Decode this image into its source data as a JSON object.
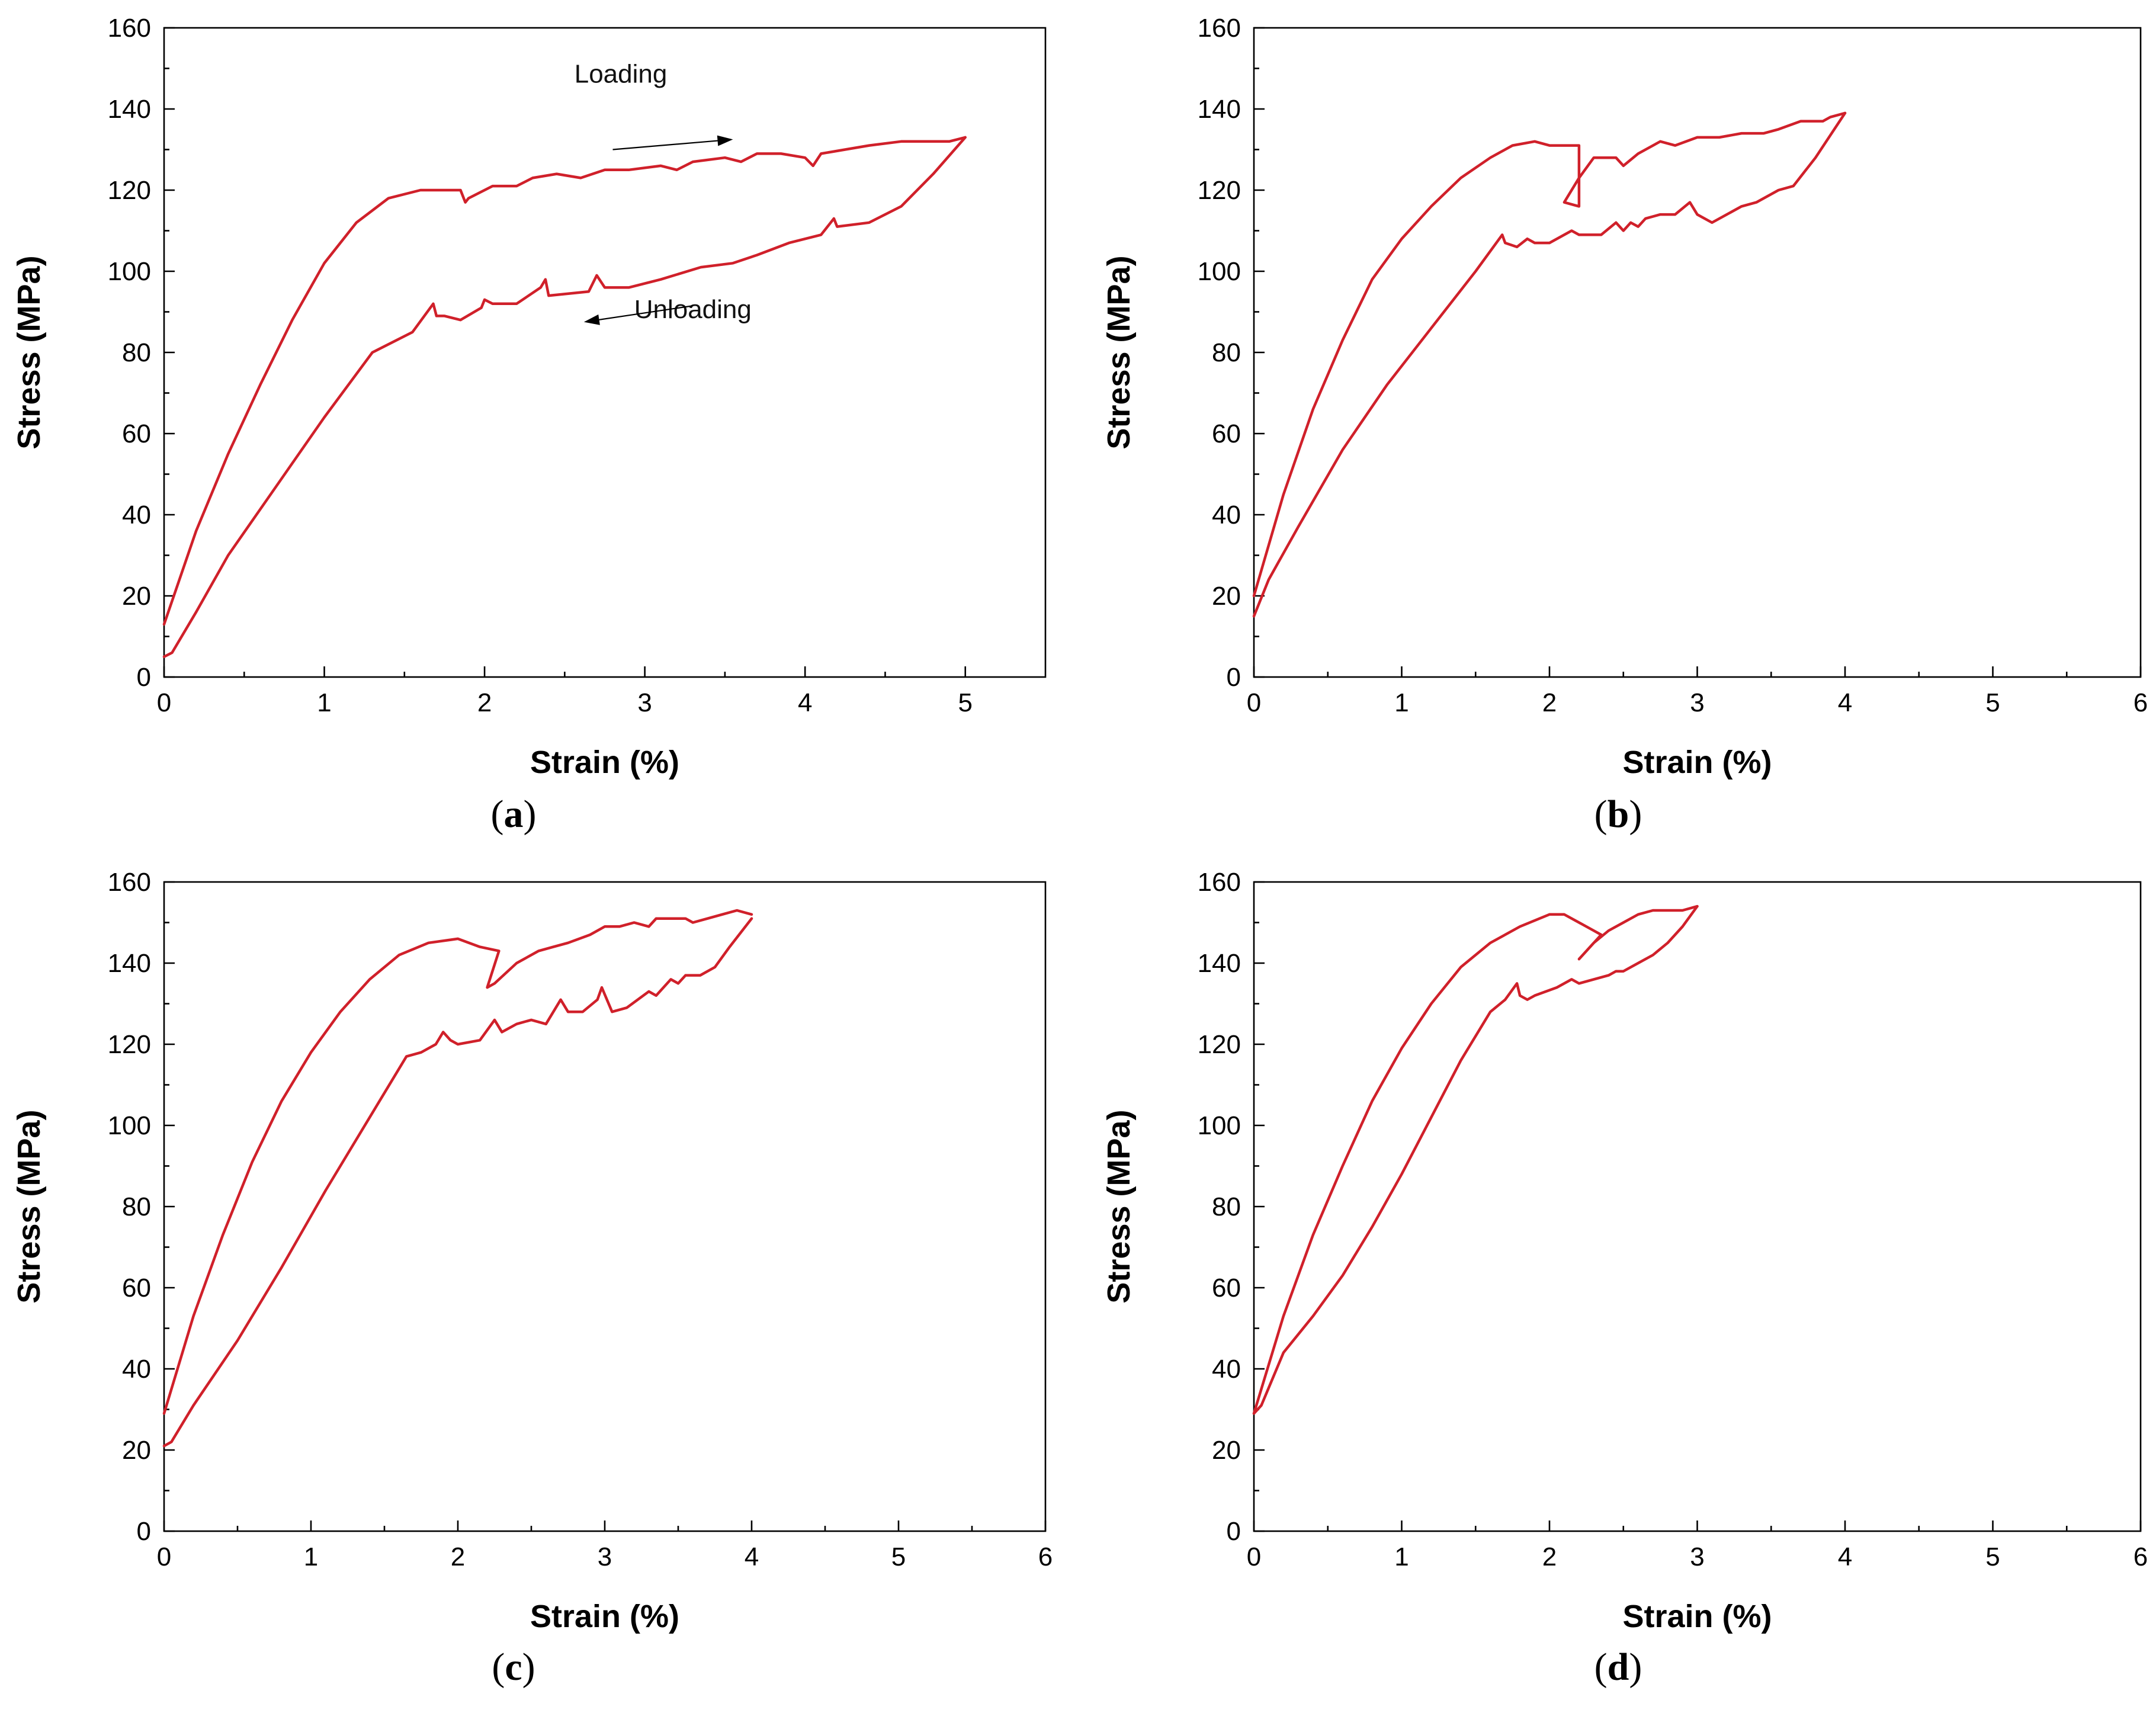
{
  "figure": {
    "line_color": "#d0202a",
    "axis_color": "#000000"
  },
  "chart_data": [
    {
      "panel": "a",
      "type": "line",
      "xlabel": "Strain (%)",
      "ylabel": "Stress (MPa)",
      "xlim": [
        0,
        5.5
      ],
      "ylim": [
        0,
        160
      ],
      "xticks": [
        0,
        1,
        2,
        3,
        4,
        5
      ],
      "yticks": [
        0,
        20,
        40,
        60,
        80,
        100,
        120,
        140,
        160
      ],
      "grid": false,
      "annotations": [
        {
          "text": "Loading",
          "x": 2.85,
          "y": 146.5,
          "arrow_from": [
            2.8,
            130
          ],
          "arrow_to": [
            3.55,
            132.5
          ]
        },
        {
          "text": "Unloading",
          "x": 3.3,
          "y": 88.5,
          "arrow_from": [
            3.3,
            91.5
          ],
          "arrow_to": [
            2.62,
            87.5
          ]
        }
      ],
      "series": [
        {
          "x": [
            0.0,
            0.2,
            0.4,
            0.6,
            0.8,
            1.0,
            1.2,
            1.4,
            1.6,
            1.72,
            1.85,
            1.88,
            1.9,
            2.05,
            2.2,
            2.3,
            2.45,
            2.6,
            2.75,
            2.9,
            3.1,
            3.2,
            3.3,
            3.5,
            3.6,
            3.7,
            3.85,
            4.0,
            4.05,
            4.1,
            4.25,
            4.4,
            4.6,
            4.75,
            4.9,
            5.0
          ],
          "y": [
            13,
            36,
            55,
            72,
            88,
            102,
            112,
            118,
            120,
            120,
            120,
            117,
            118,
            121,
            121,
            123,
            124,
            123,
            125,
            125,
            126,
            125,
            127,
            128,
            127,
            129,
            129,
            128,
            126,
            129,
            130,
            131,
            132,
            132,
            132,
            133
          ]
        },
        {
          "x": [
            5.0,
            4.8,
            4.6,
            4.4,
            4.2,
            4.18,
            4.1,
            3.9,
            3.7,
            3.55,
            3.35,
            3.1,
            2.9,
            2.75,
            2.7,
            2.65,
            2.4,
            2.38,
            2.35,
            2.2,
            2.05,
            2.0,
            1.98,
            1.85,
            1.75,
            1.7,
            1.68,
            1.55,
            1.3,
            1.0,
            0.7,
            0.4,
            0.2,
            0.05,
            0.0
          ],
          "y": [
            133,
            124,
            116,
            112,
            111,
            113,
            109,
            107,
            104,
            102,
            101,
            98,
            96,
            96,
            99,
            95,
            94,
            98,
            96,
            92,
            92,
            93,
            91,
            88,
            89,
            89,
            92,
            85,
            80,
            64,
            47,
            30,
            16,
            6,
            5
          ]
        }
      ]
    },
    {
      "panel": "b",
      "type": "line",
      "xlabel": "Strain (%)",
      "ylabel": "Stress (MPa)",
      "xlim": [
        0,
        6
      ],
      "ylim": [
        0,
        160
      ],
      "xticks": [
        0,
        1,
        2,
        3,
        4,
        5,
        6
      ],
      "yticks": [
        0,
        20,
        40,
        60,
        80,
        100,
        120,
        140,
        160
      ],
      "grid": false,
      "series": [
        {
          "x": [
            0.0,
            0.2,
            0.4,
            0.6,
            0.8,
            1.0,
            1.2,
            1.4,
            1.6,
            1.75,
            1.9,
            2.0,
            2.1,
            2.2,
            2.2,
            2.1,
            2.2,
            2.3,
            2.45,
            2.5,
            2.6,
            2.75,
            2.85,
            3.0,
            3.15,
            3.3,
            3.45,
            3.55,
            3.7,
            3.85,
            3.9,
            4.0
          ],
          "y": [
            20,
            45,
            66,
            83,
            98,
            108,
            116,
            123,
            128,
            131,
            132,
            131,
            131,
            131,
            116,
            117,
            123,
            128,
            128,
            126,
            129,
            132,
            131,
            133,
            133,
            134,
            134,
            135,
            137,
            137,
            138,
            139
          ]
        },
        {
          "x": [
            4.0,
            3.8,
            3.65,
            3.55,
            3.4,
            3.3,
            3.1,
            3.0,
            2.95,
            2.85,
            2.75,
            2.65,
            2.6,
            2.55,
            2.5,
            2.45,
            2.35,
            2.2,
            2.15,
            2.0,
            1.9,
            1.85,
            1.78,
            1.7,
            1.68,
            1.5,
            1.2,
            0.9,
            0.6,
            0.3,
            0.1,
            0.0
          ],
          "y": [
            139,
            128,
            121,
            120,
            117,
            116,
            112,
            114,
            117,
            114,
            114,
            113,
            111,
            112,
            110,
            112,
            109,
            109,
            110,
            107,
            107,
            108,
            106,
            107,
            109,
            100,
            86,
            72,
            56,
            37,
            24,
            15
          ]
        }
      ]
    },
    {
      "panel": "c",
      "type": "line",
      "xlabel": "Strain (%)",
      "ylabel": "Stress (MPa)",
      "xlim": [
        0,
        6
      ],
      "ylim": [
        0,
        160
      ],
      "xticks": [
        0,
        1,
        2,
        3,
        4,
        5,
        6
      ],
      "yticks": [
        0,
        20,
        40,
        60,
        80,
        100,
        120,
        140,
        160
      ],
      "grid": false,
      "series": [
        {
          "x": [
            0.0,
            0.2,
            0.4,
            0.6,
            0.8,
            1.0,
            1.2,
            1.4,
            1.6,
            1.8,
            2.0,
            2.15,
            2.28,
            2.2,
            2.25,
            2.4,
            2.55,
            2.65,
            2.75,
            2.9,
            3.0,
            3.1,
            3.2,
            3.3,
            3.35,
            3.45,
            3.55,
            3.6,
            3.7,
            3.8,
            3.9,
            4.0
          ],
          "y": [
            29,
            53,
            73,
            91,
            106,
            118,
            128,
            136,
            142,
            145,
            146,
            144,
            143,
            134,
            135,
            140,
            143,
            144,
            145,
            147,
            149,
            149,
            150,
            149,
            151,
            151,
            151,
            150,
            151,
            152,
            153,
            152
          ]
        },
        {
          "x": [
            4.0,
            3.85,
            3.75,
            3.65,
            3.55,
            3.5,
            3.45,
            3.35,
            3.3,
            3.15,
            3.05,
            2.98,
            2.95,
            2.85,
            2.75,
            2.7,
            2.6,
            2.5,
            2.4,
            2.3,
            2.25,
            2.15,
            2.0,
            1.95,
            1.9,
            1.85,
            1.75,
            1.65,
            1.4,
            1.1,
            0.8,
            0.5,
            0.2,
            0.05,
            0.0
          ],
          "y": [
            151,
            144,
            139,
            137,
            137,
            135,
            136,
            132,
            133,
            129,
            128,
            134,
            131,
            128,
            128,
            131,
            125,
            126,
            125,
            123,
            126,
            121,
            120,
            121,
            123,
            120,
            118,
            117,
            102,
            84,
            65,
            47,
            31,
            22,
            21
          ]
        }
      ]
    },
    {
      "panel": "d",
      "type": "line",
      "xlabel": "Strain (%)",
      "ylabel": "Stress (MPa)",
      "xlim": [
        0,
        6
      ],
      "ylim": [
        0,
        160
      ],
      "xticks": [
        0,
        1,
        2,
        3,
        4,
        5,
        6
      ],
      "yticks": [
        0,
        20,
        40,
        60,
        80,
        100,
        120,
        140,
        160
      ],
      "grid": false,
      "series": [
        {
          "x": [
            0.0,
            0.2,
            0.4,
            0.6,
            0.8,
            1.0,
            1.2,
            1.4,
            1.6,
            1.8,
            2.0,
            2.1,
            2.2,
            2.3,
            2.35,
            2.2,
            2.3,
            2.4,
            2.5,
            2.6,
            2.7,
            2.8,
            2.9,
            3.0
          ],
          "y": [
            29,
            53,
            73,
            90,
            106,
            119,
            130,
            139,
            145,
            149,
            152,
            152,
            150,
            148,
            147,
            141,
            145,
            148,
            150,
            152,
            153,
            153,
            153,
            154
          ]
        },
        {
          "x": [
            3.0,
            2.9,
            2.8,
            2.7,
            2.6,
            2.5,
            2.45,
            2.4,
            2.3,
            2.2,
            2.15,
            2.05,
            1.9,
            1.85,
            1.8,
            1.78,
            1.7,
            1.6,
            1.4,
            1.2,
            1.0,
            0.8,
            0.6,
            0.4,
            0.2,
            0.05,
            0.0
          ],
          "y": [
            154,
            149,
            145,
            142,
            140,
            138,
            138,
            137,
            136,
            135,
            136,
            134,
            132,
            131,
            132,
            135,
            131,
            128,
            116,
            102,
            88,
            75,
            63,
            53,
            44,
            31,
            29
          ]
        }
      ]
    }
  ],
  "panel_labels": [
    {
      "open": "(",
      "letter": "a",
      "close": ")"
    },
    {
      "open": "(",
      "letter": "b",
      "close": ")"
    },
    {
      "open": "(",
      "letter": "c",
      "close": ")"
    },
    {
      "open": "(",
      "letter": "d",
      "close": ")"
    }
  ]
}
